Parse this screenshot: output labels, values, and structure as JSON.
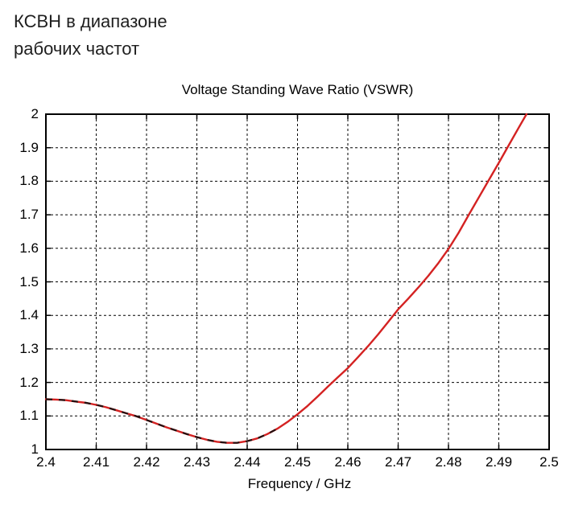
{
  "header": {
    "line1": "КСВН в диапазоне",
    "line2": "рабочих частот"
  },
  "chart_data": {
    "type": "line",
    "title": "Voltage Standing Wave Ratio (VSWR)",
    "xlabel": "Frequency / GHz",
    "ylabel": "",
    "xlim": [
      2.4,
      2.5
    ],
    "ylim": [
      1.0,
      2.0
    ],
    "x_tick_labels": [
      "2.4",
      "2.41",
      "2.42",
      "2.43",
      "2.44",
      "2.45",
      "2.46",
      "2.47",
      "2.48",
      "2.49",
      "2.5"
    ],
    "y_tick_labels": [
      "1",
      "1.1",
      "1.2",
      "1.3",
      "1.4",
      "1.5",
      "1.6",
      "1.7",
      "1.8",
      "1.9",
      "2"
    ],
    "grid": {
      "visible": true,
      "style": "dashed",
      "color": "#000000"
    },
    "legend": "none",
    "frame_color": "#000000",
    "series": [
      {
        "name": "VSWR",
        "style": "solid",
        "color": "#d42222",
        "points": [
          [
            2.4,
            1.15
          ],
          [
            2.402,
            1.149
          ],
          [
            2.404,
            1.147
          ],
          [
            2.406,
            1.143
          ],
          [
            2.408,
            1.139
          ],
          [
            2.41,
            1.133
          ],
          [
            2.412,
            1.126
          ],
          [
            2.414,
            1.117
          ],
          [
            2.416,
            1.108
          ],
          [
            2.418,
            1.099
          ],
          [
            2.42,
            1.088
          ],
          [
            2.422,
            1.077
          ],
          [
            2.424,
            1.066
          ],
          [
            2.426,
            1.056
          ],
          [
            2.428,
            1.046
          ],
          [
            2.43,
            1.037
          ],
          [
            2.432,
            1.029
          ],
          [
            2.434,
            1.023
          ],
          [
            2.436,
            1.02
          ],
          [
            2.438,
            1.02
          ],
          [
            2.44,
            1.025
          ],
          [
            2.442,
            1.033
          ],
          [
            2.444,
            1.046
          ],
          [
            2.446,
            1.062
          ],
          [
            2.448,
            1.082
          ],
          [
            2.45,
            1.105
          ],
          [
            2.452,
            1.13
          ],
          [
            2.454,
            1.158
          ],
          [
            2.456,
            1.187
          ],
          [
            2.458,
            1.215
          ],
          [
            2.46,
            1.243
          ],
          [
            2.462,
            1.275
          ],
          [
            2.464,
            1.308
          ],
          [
            2.466,
            1.343
          ],
          [
            2.468,
            1.38
          ],
          [
            2.47,
            1.418
          ],
          [
            2.472,
            1.45
          ],
          [
            2.474,
            1.483
          ],
          [
            2.476,
            1.518
          ],
          [
            2.478,
            1.556
          ],
          [
            2.48,
            1.598
          ],
          [
            2.482,
            1.646
          ],
          [
            2.484,
            1.699
          ],
          [
            2.486,
            1.751
          ],
          [
            2.488,
            1.803
          ],
          [
            2.49,
            1.855
          ],
          [
            2.492,
            1.908
          ],
          [
            2.494,
            1.961
          ],
          [
            2.4955,
            2.0
          ]
        ],
        "min_point": [
          2.437,
          1.02
        ],
        "value_at_band_start": 1.15,
        "reaches_top_at": 2.4955
      },
      {
        "name": "VSWR coincident dashed overlay",
        "style": "dashed",
        "color": "#221111",
        "x_start": 2.4,
        "x_end": 2.4465,
        "note": "dark dashed trace lying exactly on the red curve from 2.40 to ~2.446 GHz"
      }
    ]
  }
}
